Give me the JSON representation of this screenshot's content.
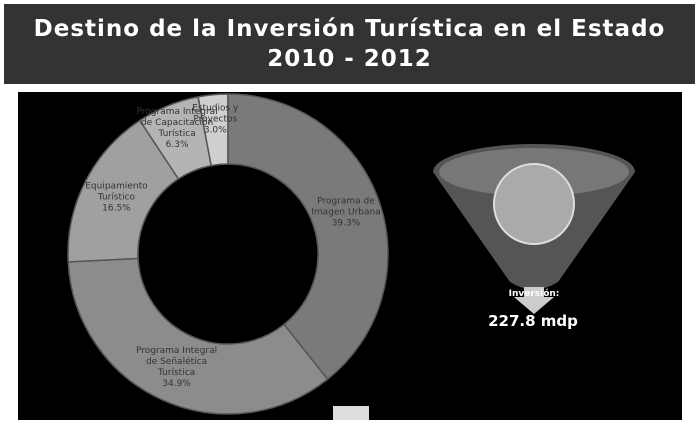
{
  "header": {
    "title": "Destino de la Inversión Turística en el Estado 2010 - 2012"
  },
  "chart_data": {
    "type": "donut",
    "categories": [
      "Programa de Imagen Urbana",
      "Programa Integral de Señalética Turística",
      "Equipamiento Turístico",
      "Programa Integral de Capacitación Turística",
      "Estudios y Proyectos"
    ],
    "values": [
      39.3,
      34.9,
      16.5,
      6.3,
      3.0
    ],
    "value_labels": [
      "39.3%",
      "34.9%",
      "16.5%",
      "6.3%",
      "3.0%"
    ],
    "colors": [
      "#7a7a7a",
      "#8c8c8c",
      "#a0a0a0",
      "#b4b4b4",
      "#cfcfcf"
    ]
  },
  "funnel": {
    "label": "Inversión:",
    "total": "227.8 mdp"
  }
}
